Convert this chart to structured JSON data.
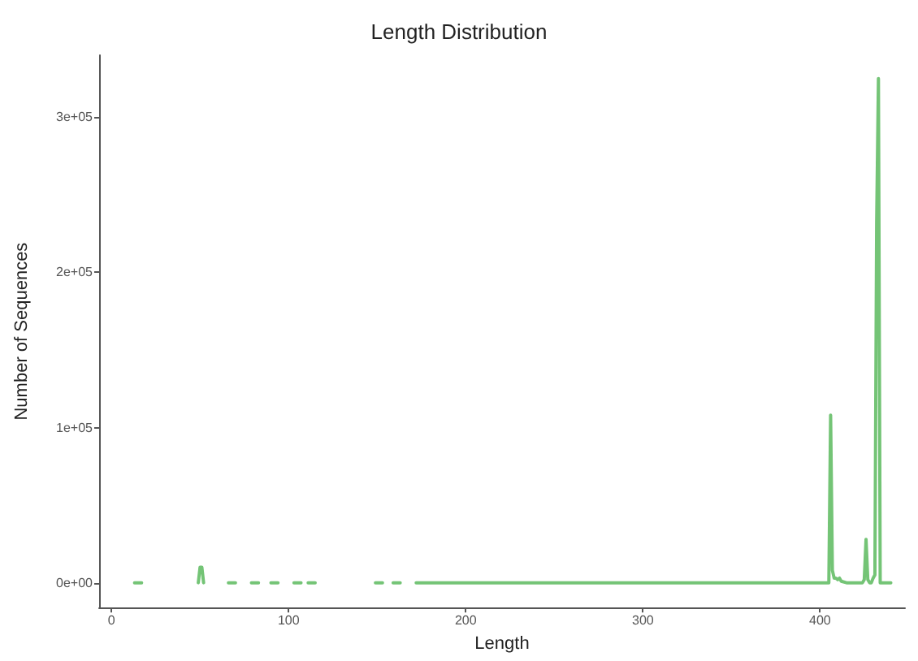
{
  "chart_data": {
    "type": "line",
    "title": "Length Distribution",
    "xlabel": "Length",
    "ylabel": "Number of Sequences",
    "series": [
      {
        "color": "#74c476",
        "x": [
          13,
          17,
          null,
          49,
          50,
          51,
          52,
          null,
          66,
          70,
          null,
          79,
          83,
          null,
          90,
          94,
          null,
          103,
          107,
          null,
          111,
          115,
          null,
          149,
          153,
          null,
          159,
          163,
          null,
          172,
          200,
          250,
          300,
          350,
          400,
          404,
          405,
          406,
          407,
          408,
          409,
          410,
          411,
          412,
          415,
          420,
          424,
          425,
          426,
          427,
          428,
          429,
          430,
          431,
          432,
          433,
          434,
          440
        ],
        "values": [
          0,
          0,
          null,
          0,
          10000,
          10000,
          0,
          null,
          0,
          0,
          null,
          0,
          0,
          null,
          0,
          0,
          null,
          0,
          0,
          null,
          0,
          0,
          null,
          0,
          0,
          null,
          0,
          0,
          null,
          0,
          0,
          0,
          0,
          0,
          0,
          0,
          0,
          108000,
          8000,
          3000,
          3000,
          2000,
          3000,
          1000,
          0,
          0,
          0,
          2000,
          28000,
          2000,
          0,
          0,
          3000,
          5000,
          232000,
          325000,
          0,
          0
        ]
      }
    ],
    "xlim": [
      -7,
      448
    ],
    "xticks": [
      0,
      100,
      200,
      300,
      400
    ],
    "ylim": [
      -16000,
      340000
    ],
    "yticks": [
      {
        "value": 0,
        "label": "0e+00"
      },
      {
        "value": 100000,
        "label": "1e+05"
      },
      {
        "value": 200000,
        "label": "2e+05"
      },
      {
        "value": 300000,
        "label": "3e+05"
      }
    ],
    "grid": false,
    "marker": "none",
    "line_style": "solid"
  }
}
